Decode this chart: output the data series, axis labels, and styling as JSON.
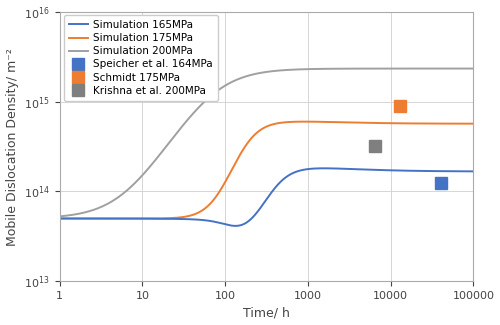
{
  "title": "",
  "xlabel": "Time/ h",
  "ylabel": "Mobile Dislocation Density/ m⁻²",
  "xlim": [
    1,
    100000
  ],
  "ylim": [
    10000000000000.0,
    1e+16
  ],
  "background_color": "#ffffff",
  "grid_color": "#d0d0d0",
  "line_165_color": "#4472c4",
  "line_175_color": "#ed7d31",
  "line_200_color": "#a0a0a0",
  "marker_speicher_color": "#4472c4",
  "marker_schmidt_color": "#ed7d31",
  "marker_krishna_color": "#7f7f7f",
  "legend_labels": [
    "Simulation 165MPa",
    "Simulation 175MPa",
    "Simulation 200MPa",
    "Speicher et al. 164MPa",
    "Schmidt 175MPa",
    "Krishna et al. 200MPa"
  ],
  "marker_speicher_x": 40000,
  "marker_speicher_y": 125000000000000.0,
  "marker_schmidt_x": 13000,
  "marker_schmidt_y": 900000000000000.0,
  "marker_krishna_x": 6500,
  "marker_krishna_y": 320000000000000.0
}
